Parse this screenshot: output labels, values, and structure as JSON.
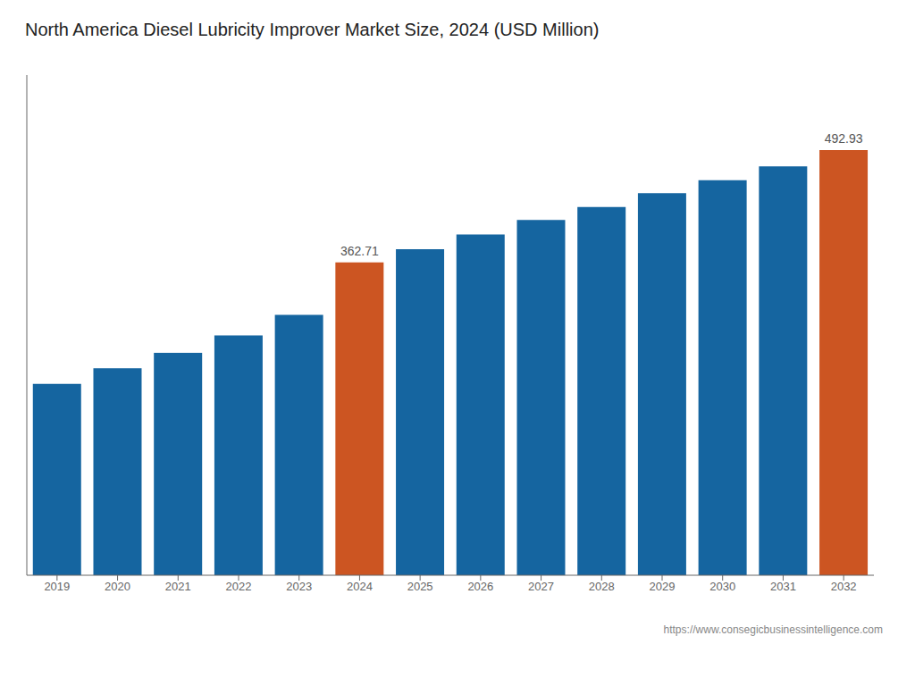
{
  "chart_data": {
    "type": "bar",
    "title": "North America Diesel Lubricity Improver Market Size, 2024 (USD Million)",
    "categories": [
      "2019",
      "2020",
      "2021",
      "2022",
      "2023",
      "2024",
      "2025",
      "2026",
      "2027",
      "2028",
      "2029",
      "2030",
      "2031",
      "2032"
    ],
    "values": [
      222.0,
      240.0,
      258.0,
      278.0,
      302.0,
      362.71,
      378.0,
      395.0,
      412.0,
      427.0,
      443.0,
      458.0,
      474.0,
      492.93
    ],
    "value_labels": [
      null,
      null,
      null,
      null,
      null,
      "362.71",
      null,
      null,
      null,
      null,
      null,
      null,
      null,
      "492.93"
    ],
    "colors": [
      "#1565a0",
      "#1565a0",
      "#1565a0",
      "#1565a0",
      "#1565a0",
      "#cc5522",
      "#1565a0",
      "#1565a0",
      "#1565a0",
      "#1565a0",
      "#1565a0",
      "#1565a0",
      "#1565a0",
      "#cc5522"
    ],
    "ylim": [
      0,
      580
    ],
    "grid": false,
    "tick_labels": "x",
    "annotations": [
      "https://www.consegicbusinessintelligence.com"
    ]
  }
}
